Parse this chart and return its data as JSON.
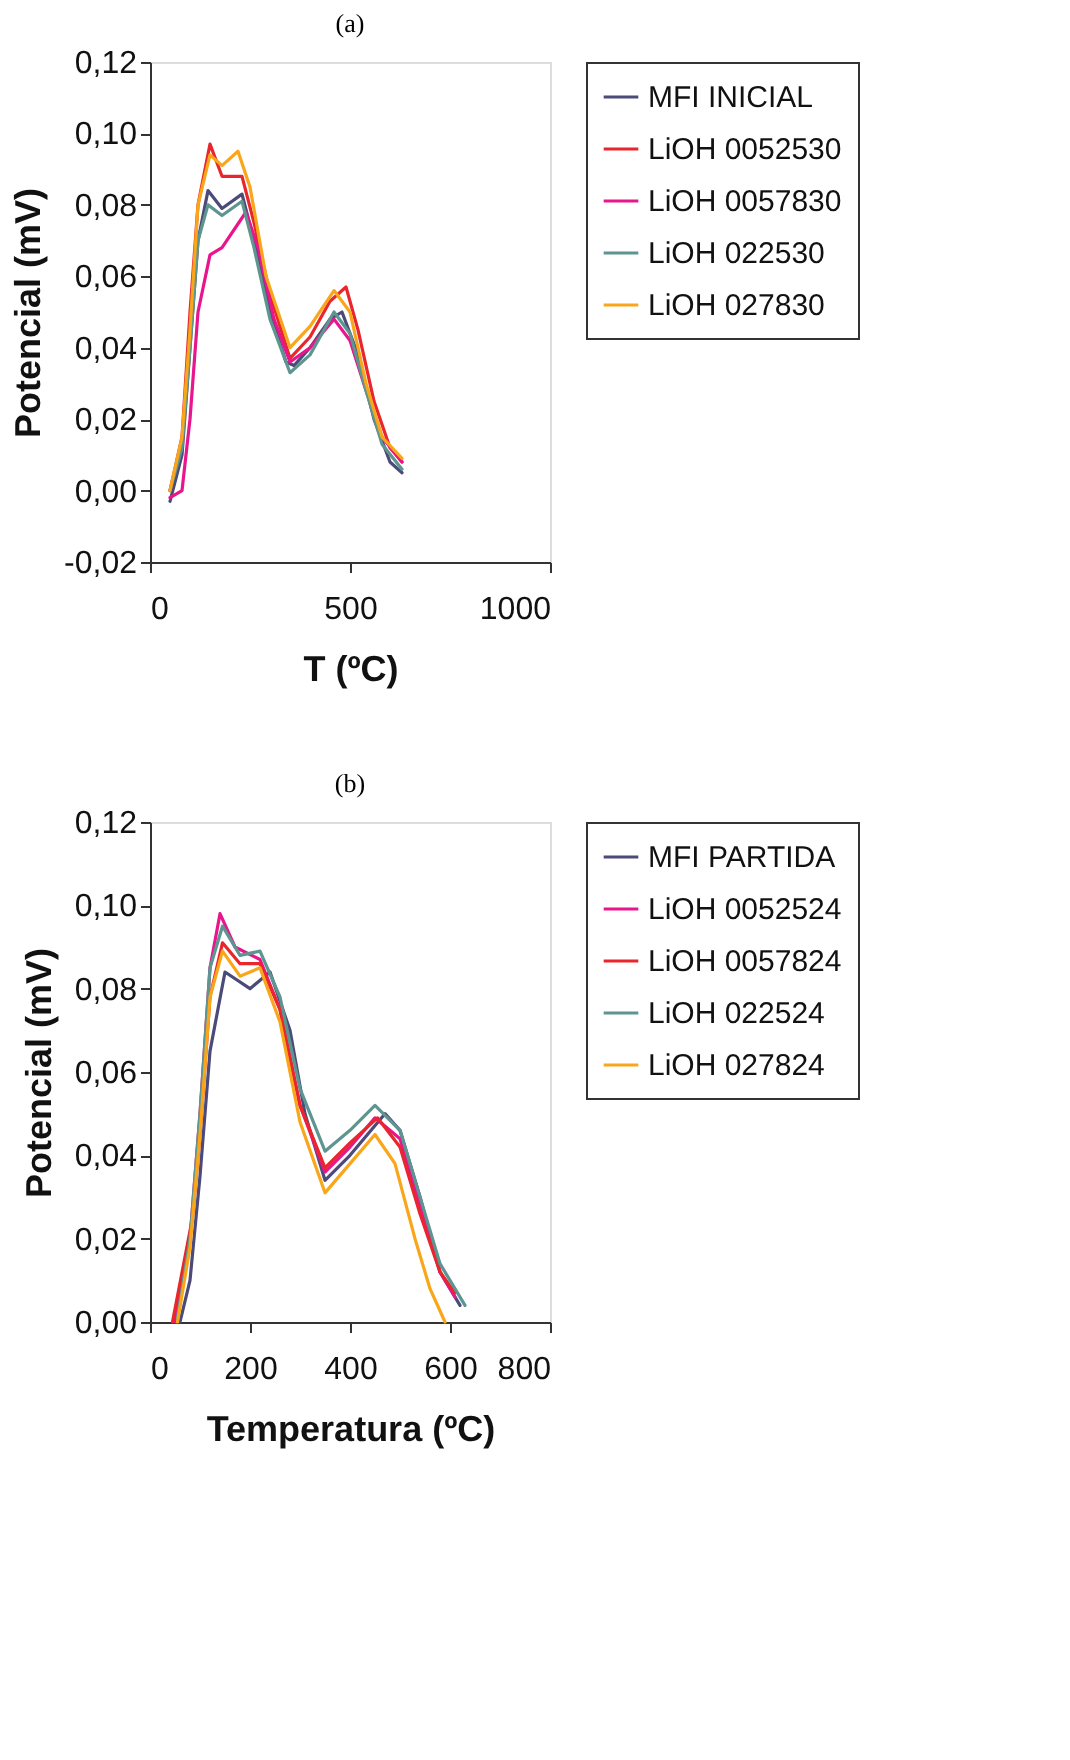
{
  "chart_data": [
    {
      "type": "line",
      "title": "(a)",
      "xlabel": "T (ºC)",
      "ylabel": "Potencial (mV)",
      "xlim": [
        0,
        1000
      ],
      "xticks": [
        0,
        500,
        1000
      ],
      "ylim": [
        -0.02,
        0.12
      ],
      "yticks": [
        {
          "value": -0.02,
          "label": "-0,02"
        },
        {
          "value": 0,
          "label": "0,00"
        },
        {
          "value": 0.02,
          "label": "0,02"
        },
        {
          "value": 0.04,
          "label": "0,04"
        },
        {
          "value": 0.06,
          "label": "0,06"
        },
        {
          "value": 0.08,
          "label": "0,08"
        },
        {
          "value": 0.1,
          "label": "0,10"
        },
        {
          "value": 0.12,
          "label": "0,12"
        }
      ],
      "grid": false,
      "legend": "right",
      "marker": "none",
      "line_style": "solid",
      "series": [
        {
          "name": "MFI INICIAL",
          "color": "#4b4a78",
          "x": [
            50,
            80,
            100,
            120,
            145,
            180,
            230,
            260,
            300,
            340,
            360,
            400,
            450,
            480,
            520,
            560,
            600,
            630
          ],
          "values": [
            -0.003,
            0.01,
            0.04,
            0.07,
            0.084,
            0.079,
            0.083,
            0.07,
            0.05,
            0.036,
            0.035,
            0.04,
            0.048,
            0.05,
            0.038,
            0.02,
            0.008,
            0.005
          ]
        },
        {
          "name": "LiOH 0052530",
          "color": "#e8262c",
          "x": [
            50,
            80,
            100,
            120,
            150,
            180,
            230,
            260,
            300,
            350,
            400,
            450,
            490,
            520,
            560,
            600,
            630
          ],
          "values": [
            0,
            0.015,
            0.05,
            0.08,
            0.097,
            0.088,
            0.088,
            0.075,
            0.055,
            0.037,
            0.043,
            0.053,
            0.057,
            0.045,
            0.025,
            0.012,
            0.008
          ]
        },
        {
          "name": "LiOH 0057830",
          "color": "#e8158c",
          "x": [
            50,
            80,
            100,
            120,
            150,
            180,
            240,
            270,
            310,
            350,
            400,
            460,
            500,
            540,
            580,
            630
          ],
          "values": [
            -0.002,
            0.0,
            0.02,
            0.05,
            0.066,
            0.068,
            0.078,
            0.068,
            0.048,
            0.036,
            0.04,
            0.048,
            0.042,
            0.028,
            0.015,
            0.008
          ]
        },
        {
          "name": "LiOH 022530",
          "color": "#5d9590",
          "x": [
            50,
            80,
            100,
            120,
            145,
            180,
            230,
            260,
            300,
            350,
            400,
            460,
            500,
            540,
            580,
            630
          ],
          "values": [
            0,
            0.012,
            0.04,
            0.07,
            0.08,
            0.077,
            0.081,
            0.068,
            0.048,
            0.033,
            0.038,
            0.05,
            0.044,
            0.028,
            0.013,
            0.006
          ]
        },
        {
          "name": "LiOH 027830",
          "color": "#f9a61a",
          "x": [
            50,
            80,
            100,
            120,
            150,
            180,
            220,
            250,
            290,
            350,
            400,
            460,
            500,
            540,
            580,
            630
          ],
          "values": [
            0,
            0.015,
            0.045,
            0.08,
            0.094,
            0.091,
            0.095,
            0.085,
            0.06,
            0.04,
            0.046,
            0.056,
            0.05,
            0.03,
            0.015,
            0.009
          ]
        }
      ]
    },
    {
      "type": "line",
      "title": "(b)",
      "xlabel": "Temperatura (ºC)",
      "ylabel": "Potencial (mV)",
      "xlim": [
        0,
        800
      ],
      "xticks": [
        0,
        200,
        400,
        600,
        800
      ],
      "ylim": [
        0,
        0.12
      ],
      "yticks": [
        {
          "value": 0,
          "label": "0,00"
        },
        {
          "value": 0.02,
          "label": "0,02"
        },
        {
          "value": 0.04,
          "label": "0,04"
        },
        {
          "value": 0.06,
          "label": "0,06"
        },
        {
          "value": 0.08,
          "label": "0,08"
        },
        {
          "value": 0.1,
          "label": "0,10"
        },
        {
          "value": 0.12,
          "label": "0,12"
        }
      ],
      "grid": false,
      "legend": "right",
      "marker": "none",
      "line_style": "solid",
      "series": [
        {
          "name": "MFI PARTIDA",
          "color": "#4b4a78",
          "x": [
            60,
            80,
            100,
            120,
            150,
            200,
            240,
            280,
            310,
            350,
            400,
            470,
            500,
            540,
            580,
            620
          ],
          "values": [
            0,
            0.01,
            0.035,
            0.065,
            0.084,
            0.08,
            0.084,
            0.07,
            0.05,
            0.034,
            0.04,
            0.05,
            0.046,
            0.03,
            0.012,
            0.004
          ]
        },
        {
          "name": "LiOH 0052524",
          "color": "#e8158c",
          "x": [
            50,
            80,
            100,
            120,
            140,
            170,
            220,
            260,
            300,
            350,
            400,
            450,
            500,
            540,
            580,
            610
          ],
          "values": [
            0,
            0.02,
            0.05,
            0.085,
            0.098,
            0.09,
            0.087,
            0.075,
            0.052,
            0.036,
            0.042,
            0.049,
            0.044,
            0.028,
            0.012,
            0.006
          ]
        },
        {
          "name": "LiOH 0057824",
          "color": "#e8262c",
          "x": [
            45,
            85,
            100,
            120,
            145,
            180,
            220,
            260,
            300,
            350,
            400,
            455,
            500,
            540,
            580,
            610
          ],
          "values": [
            0,
            0.025,
            0.045,
            0.078,
            0.091,
            0.086,
            0.086,
            0.075,
            0.052,
            0.037,
            0.043,
            0.049,
            0.042,
            0.026,
            0.012,
            0.007
          ]
        },
        {
          "name": "LiOH 022524",
          "color": "#5d9590",
          "x": [
            55,
            80,
            100,
            120,
            145,
            180,
            220,
            260,
            300,
            350,
            400,
            450,
            500,
            540,
            580,
            630
          ],
          "values": [
            0.001,
            0.02,
            0.05,
            0.085,
            0.095,
            0.088,
            0.089,
            0.078,
            0.056,
            0.041,
            0.046,
            0.052,
            0.046,
            0.03,
            0.014,
            0.004
          ]
        },
        {
          "name": "LiOH 027824",
          "color": "#f9a61a",
          "x": [
            55,
            80,
            100,
            120,
            145,
            180,
            220,
            260,
            300,
            350,
            400,
            450,
            490,
            530,
            560,
            590
          ],
          "values": [
            0,
            0.018,
            0.045,
            0.078,
            0.089,
            0.083,
            0.085,
            0.072,
            0.048,
            0.031,
            0.038,
            0.045,
            0.038,
            0.02,
            0.008,
            0.0
          ]
        }
      ]
    }
  ]
}
